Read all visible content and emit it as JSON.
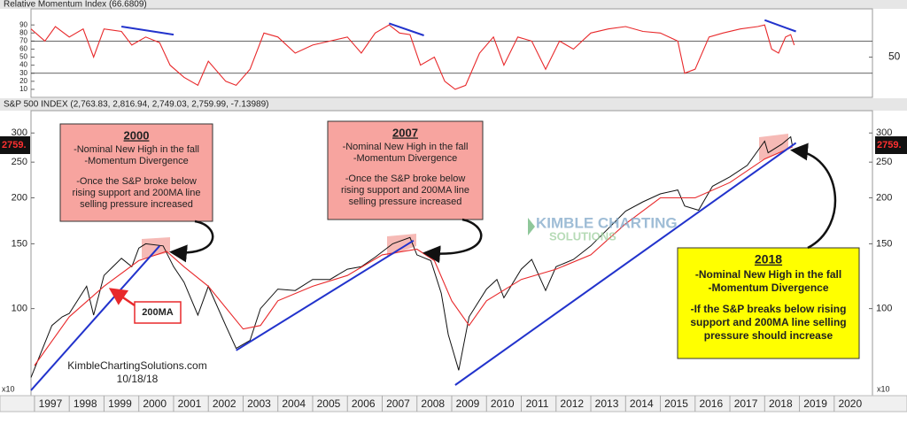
{
  "chart_data": [
    {
      "type": "line",
      "title": "Relative Momentum Index (66.6809)",
      "xlim": [
        1996.9,
        2021.1
      ],
      "ylim": [
        0,
        110
      ],
      "yticks": [
        10,
        20,
        30,
        40,
        50,
        60,
        70,
        80,
        90
      ],
      "y2lim": [
        0,
        110
      ],
      "y2ticks": [
        50
      ],
      "hlines": [
        70,
        30
      ],
      "series": [
        {
          "color": "#e8292b",
          "x": [
            1996.9,
            1997.3,
            1997.6,
            1998.0,
            1998.4,
            1998.7,
            1999.0,
            1999.5,
            1999.8,
            2000.2,
            2000.6,
            2000.9,
            2001.3,
            2001.7,
            2002.0,
            2002.5,
            2002.8,
            2003.2,
            2003.6,
            2004.0,
            2004.5,
            2005.0,
            2005.5,
            2006.0,
            2006.4,
            2006.8,
            2007.2,
            2007.5,
            2007.8,
            2008.1,
            2008.5,
            2008.8,
            2009.1,
            2009.4,
            2009.8,
            2010.2,
            2010.5,
            2010.9,
            2011.3,
            2011.7,
            2012.1,
            2012.5,
            2013.0,
            2013.5,
            2014.0,
            2014.5,
            2015.0,
            2015.5,
            2015.7,
            2016.0,
            2016.4,
            2016.8,
            2017.3,
            2017.8,
            2018.0,
            2018.2,
            2018.4,
            2018.6,
            2018.75,
            2018.85
          ],
          "values": [
            85,
            70,
            88,
            75,
            85,
            50,
            85,
            82,
            65,
            75,
            68,
            40,
            25,
            15,
            45,
            20,
            15,
            35,
            80,
            75,
            55,
            65,
            70,
            75,
            55,
            80,
            90,
            80,
            78,
            40,
            50,
            20,
            10,
            15,
            55,
            75,
            40,
            75,
            70,
            35,
            70,
            60,
            80,
            85,
            88,
            82,
            80,
            70,
            30,
            35,
            75,
            80,
            85,
            88,
            90,
            60,
            55,
            75,
            78,
            65
          ]
        }
      ],
      "trendlines": [
        {
          "x": [
            1999.5,
            2001.0
          ],
          "values": [
            88,
            78
          ]
        },
        {
          "x": [
            2007.2,
            2008.2
          ],
          "values": [
            92,
            77
          ]
        },
        {
          "x": [
            2018.0,
            2018.9
          ],
          "values": [
            96,
            82
          ]
        }
      ]
    },
    {
      "type": "line",
      "title": "S&P 500 INDEX (2,763.83, 2,816.94, 2,749.03, 2,759.99, -7.13989)",
      "log_scale": true,
      "xlim": [
        1996.9,
        2021.1
      ],
      "ylim": [
        58,
        345
      ],
      "yticks": [
        100,
        150,
        200,
        250,
        300
      ],
      "xticks": [
        1997,
        1998,
        1999,
        2000,
        2001,
        2002,
        2003,
        2004,
        2005,
        2006,
        2007,
        2008,
        2009,
        2010,
        2011,
        2012,
        2013,
        2014,
        2015,
        2016,
        2017,
        2018,
        2019,
        2020
      ],
      "scale_note": "x10",
      "last_value_label": "2759.",
      "series": [
        {
          "color": "#111111",
          "x": [
            1996.9,
            1997.5,
            1997.8,
            1998.0,
            1998.5,
            1998.7,
            1999.0,
            1999.5,
            1999.8,
            2000.0,
            2000.2,
            2000.7,
            2001.0,
            2001.3,
            2001.7,
            2002.0,
            2002.5,
            2002.8,
            2003.2,
            2003.5,
            2004.0,
            2004.5,
            2005.0,
            2005.5,
            2006.0,
            2006.4,
            2006.8,
            2007.3,
            2007.8,
            2008.0,
            2008.4,
            2008.7,
            2008.9,
            2009.2,
            2009.5,
            2010.0,
            2010.3,
            2010.5,
            2011.0,
            2011.3,
            2011.7,
            2012.0,
            2012.5,
            2013.0,
            2013.5,
            2014.0,
            2014.5,
            2015.0,
            2015.5,
            2015.7,
            2016.1,
            2016.5,
            2017.0,
            2017.5,
            2018.0,
            2018.1,
            2018.5,
            2018.75,
            2018.8
          ],
          "values": [
            65,
            90,
            95,
            97,
            115,
            96,
            123,
            137,
            130,
            146,
            150,
            148,
            130,
            118,
            96,
            115,
            90,
            78,
            82,
            100,
            113,
            112,
            120,
            120,
            128,
            130,
            138,
            150,
            156,
            140,
            135,
            110,
            85,
            68,
            95,
            113,
            120,
            107,
            128,
            136,
            112,
            130,
            136,
            148,
            165,
            184,
            195,
            205,
            210,
            190,
            185,
            215,
            228,
            245,
            285,
            265,
            280,
            293,
            276
          ]
        },
        {
          "color": "#e8292b",
          "x": [
            1997.0,
            1998.0,
            1999.0,
            2000.0,
            2000.8,
            2001.3,
            2002.0,
            2003.0,
            2003.5,
            2004.0,
            2005.0,
            2006.0,
            2007.0,
            2008.0,
            2008.5,
            2009.0,
            2009.5,
            2010.0,
            2011.0,
            2012.0,
            2013.0,
            2014.0,
            2015.0,
            2016.0,
            2017.0,
            2018.0,
            2018.8
          ],
          "values": [
            70,
            95,
            115,
            135,
            143,
            130,
            115,
            88,
            90,
            105,
            115,
            123,
            140,
            145,
            135,
            105,
            90,
            105,
            120,
            128,
            140,
            170,
            200,
            200,
            220,
            255,
            275
          ]
        }
      ],
      "trendlines": [
        {
          "x": [
            1996.9,
            2000.6
          ],
          "values": [
            60,
            148
          ]
        },
        {
          "x": [
            2002.8,
            2007.9
          ],
          "values": [
            77,
            153
          ]
        },
        {
          "x": [
            2009.1,
            2018.9
          ],
          "values": [
            62,
            282
          ]
        }
      ],
      "ma_label": "200MA",
      "watermark": [
        "KIMBLE CHARTING",
        "SOLUTIONS"
      ],
      "credit": [
        "KimbleChartingSolutions.com",
        "10/18/18"
      ],
      "annotations": [
        {
          "title": "2000",
          "paragraphs": [
            [
              "-Nominal New High in the fall",
              "-Momentum Divergence"
            ],
            [
              "-Once the S&P broke below",
              "rising support and 200MA line",
              "selling pressure increased"
            ]
          ]
        },
        {
          "title": "2007",
          "paragraphs": [
            [
              "-Nominal New High in the fall",
              "-Momentum Divergence"
            ],
            [
              "-Once the S&P broke below",
              "rising support and 200MA line",
              "selling pressure increased"
            ]
          ]
        },
        {
          "title": "2018",
          "paragraphs": [
            [
              "-Nominal New High in the fall",
              "-Momentum Divergence"
            ],
            [
              "-If the S&P breaks below rising",
              "support and 200MA line selling",
              "pressure should increase"
            ]
          ]
        }
      ]
    }
  ]
}
